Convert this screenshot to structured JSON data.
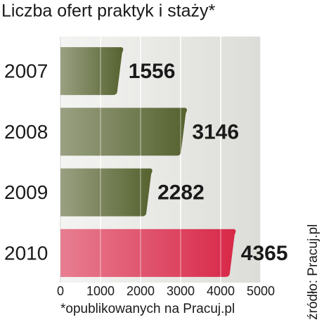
{
  "chart_data": {
    "type": "bar",
    "orientation": "horizontal",
    "title": "Liczba ofert praktyk i staży*",
    "categories": [
      "2007",
      "2008",
      "2009",
      "2010"
    ],
    "values": [
      1556,
      3146,
      2282,
      4365
    ],
    "colors": [
      "#56622f",
      "#56622f",
      "#56622f",
      "#d82848"
    ],
    "value_label_colors": [
      "#1a1a1a",
      "#1a1a1a",
      "#1a1a1a",
      "#d0103a"
    ],
    "xlim": [
      0,
      5000
    ],
    "xticks": [
      0,
      1000,
      2000,
      3000,
      4000,
      5000
    ],
    "grid": true,
    "footnote": "*opublikowanych na Pracuj.pl",
    "source": "źródło: Pracuj.pl"
  }
}
